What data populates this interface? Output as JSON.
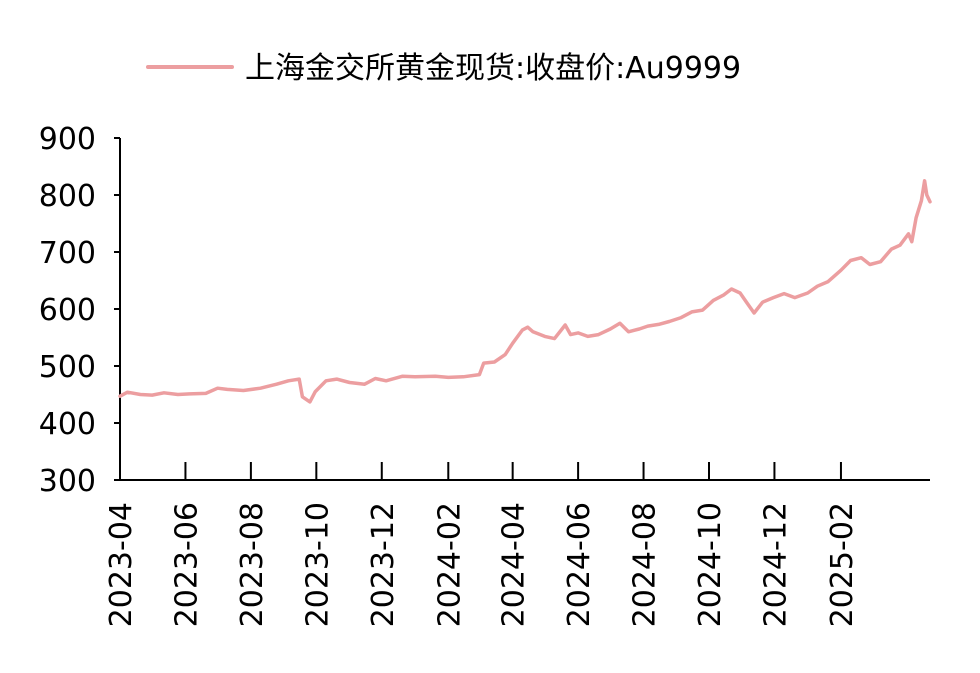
{
  "chart_data": {
    "type": "line",
    "legend": {
      "position": "top",
      "entries": [
        "上海金交所黄金现货:收盘价:Au9999"
      ]
    },
    "series": [
      {
        "name": "上海金交所黄金现货:收盘价:Au9999",
        "color": "#ec9ea0",
        "points": [
          [
            "2023-04-01",
            447
          ],
          [
            "2023-04-08",
            454
          ],
          [
            "2023-04-20",
            450
          ],
          [
            "2023-05-01",
            449
          ],
          [
            "2023-05-12",
            453
          ],
          [
            "2023-05-25",
            450
          ],
          [
            "2023-06-05",
            451
          ],
          [
            "2023-06-20",
            452
          ],
          [
            "2023-07-01",
            461
          ],
          [
            "2023-07-10",
            459
          ],
          [
            "2023-07-25",
            457
          ],
          [
            "2023-08-10",
            461
          ],
          [
            "2023-08-25",
            468
          ],
          [
            "2023-09-05",
            474
          ],
          [
            "2023-09-15",
            477
          ],
          [
            "2023-09-18",
            446
          ],
          [
            "2023-09-25",
            437
          ],
          [
            "2023-09-30",
            455
          ],
          [
            "2023-10-10",
            474
          ],
          [
            "2023-10-20",
            477
          ],
          [
            "2023-11-01",
            471
          ],
          [
            "2023-11-15",
            468
          ],
          [
            "2023-11-25",
            478
          ],
          [
            "2023-12-05",
            474
          ],
          [
            "2023-12-20",
            482
          ],
          [
            "2024-01-01",
            481
          ],
          [
            "2024-01-20",
            482
          ],
          [
            "2024-02-01",
            480
          ],
          [
            "2024-02-15",
            481
          ],
          [
            "2024-03-01",
            485
          ],
          [
            "2024-03-05",
            505
          ],
          [
            "2024-03-15",
            507
          ],
          [
            "2024-03-25",
            520
          ],
          [
            "2024-04-01",
            540
          ],
          [
            "2024-04-10",
            563
          ],
          [
            "2024-04-15",
            568
          ],
          [
            "2024-04-20",
            560
          ],
          [
            "2024-05-01",
            552
          ],
          [
            "2024-05-10",
            548
          ],
          [
            "2024-05-20",
            572
          ],
          [
            "2024-05-25",
            555
          ],
          [
            "2024-06-01",
            558
          ],
          [
            "2024-06-10",
            552
          ],
          [
            "2024-06-20",
            555
          ],
          [
            "2024-07-01",
            565
          ],
          [
            "2024-07-10",
            575
          ],
          [
            "2024-07-18",
            560
          ],
          [
            "2024-07-28",
            565
          ],
          [
            "2024-08-05",
            570
          ],
          [
            "2024-08-15",
            573
          ],
          [
            "2024-08-25",
            578
          ],
          [
            "2024-09-05",
            585
          ],
          [
            "2024-09-15",
            595
          ],
          [
            "2024-09-25",
            598
          ],
          [
            "2024-10-05",
            615
          ],
          [
            "2024-10-15",
            625
          ],
          [
            "2024-10-22",
            635
          ],
          [
            "2024-10-30",
            628
          ],
          [
            "2024-11-05",
            612
          ],
          [
            "2024-11-12",
            593
          ],
          [
            "2024-11-20",
            612
          ],
          [
            "2024-11-30",
            620
          ],
          [
            "2024-12-10",
            627
          ],
          [
            "2024-12-20",
            620
          ],
          [
            "2025-01-01",
            628
          ],
          [
            "2025-01-10",
            640
          ],
          [
            "2025-01-20",
            648
          ],
          [
            "2025-02-01",
            668
          ],
          [
            "2025-02-10",
            685
          ],
          [
            "2025-02-20",
            690
          ],
          [
            "2025-02-28",
            678
          ],
          [
            "2025-03-10",
            683
          ],
          [
            "2025-03-20",
            705
          ],
          [
            "2025-03-28",
            712
          ],
          [
            "2025-04-05",
            732
          ],
          [
            "2025-04-08",
            718
          ],
          [
            "2025-04-12",
            760
          ],
          [
            "2025-04-17",
            790
          ],
          [
            "2025-04-20",
            825
          ],
          [
            "2025-04-22",
            800
          ],
          [
            "2025-04-25",
            788
          ]
        ]
      }
    ],
    "x": {
      "type": "date",
      "min": "2023-04-01",
      "max": "2025-04-25",
      "ticks": [
        "2023-04",
        "2023-06",
        "2023-08",
        "2023-10",
        "2023-12",
        "2024-02",
        "2024-04",
        "2024-06",
        "2024-08",
        "2024-10",
        "2024-12",
        "2025-02"
      ]
    },
    "y": {
      "min": 300,
      "max": 900,
      "ticks": [
        300,
        400,
        500,
        600,
        700,
        800,
        900
      ]
    },
    "grid": false
  }
}
